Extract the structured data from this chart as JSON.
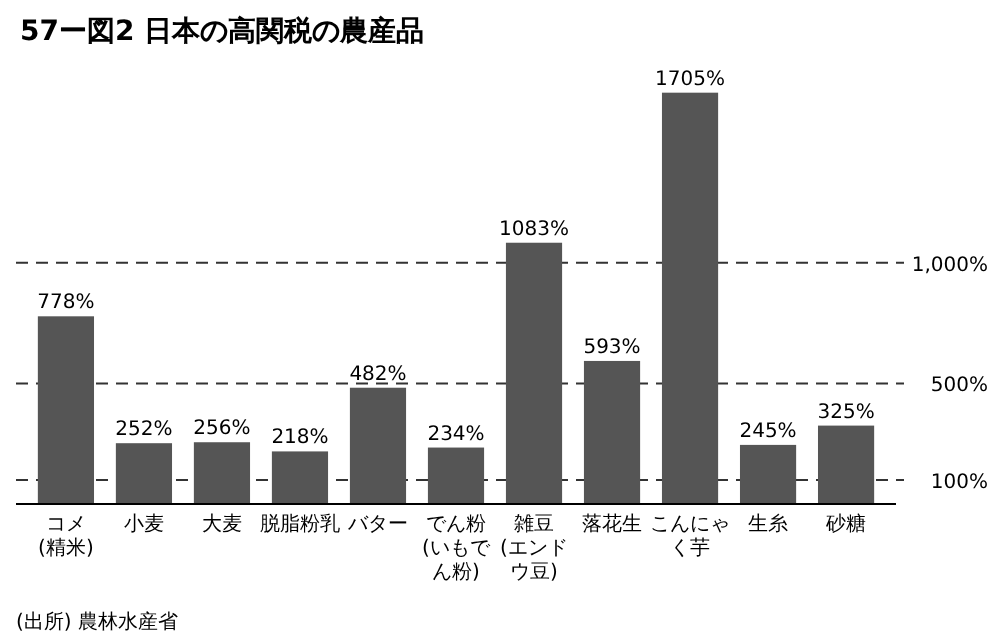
{
  "chart_data": {
    "type": "bar",
    "title": "57ー図2 日本の高関税の農産品",
    "categories": [
      "コメ\n(精米)",
      "小麦",
      "大麦",
      "脱脂粉乳",
      "バター",
      "でん粉\n(いもでん粉)",
      "雑豆\n(エンドウ豆)",
      "落花生",
      "こんにゃく芋",
      "生糸",
      "砂糖"
    ],
    "values": [
      778,
      252,
      256,
      218,
      482,
      234,
      1083,
      593,
      1705,
      245,
      325
    ],
    "value_labels": [
      "778%",
      "252%",
      "256%",
      "218%",
      "482%",
      "234%",
      "1083%",
      "593%",
      "1705%",
      "245%",
      "325%"
    ],
    "color": "#555555",
    "ref_lines": [
      {
        "axis": "y",
        "value": 1000,
        "label": "1,000%",
        "line_style": "dashed",
        "color": "#333333"
      },
      {
        "axis": "y",
        "value": 500,
        "label": "500%",
        "line_style": "dashed",
        "color": "#333333"
      },
      {
        "axis": "y",
        "value": 100,
        "label": "100%",
        "line_style": "dashed",
        "color": "#333333"
      }
    ],
    "annotations": [
      "(出所) 農林水産省"
    ],
    "tick_labels": "x"
  }
}
